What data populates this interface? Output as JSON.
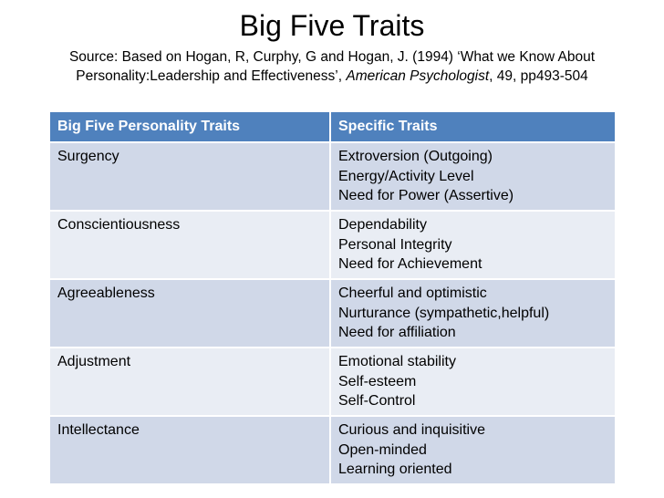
{
  "title": "Big Five Traits",
  "source": {
    "prefix": "Source: Based on Hogan, R, Curphy, G and Hogan, J. (1994) ‘What we Know About Personality:Leadership and Effectiveness’, ",
    "journal": "American Psychologist",
    "suffix": ", 49, pp493-504"
  },
  "table": {
    "headers": [
      "Big Five Personality Traits",
      "Specific Traits"
    ],
    "rows": [
      {
        "trait": "Surgency",
        "specific": [
          "Extroversion (Outgoing)",
          "Energy/Activity Level",
          "Need for Power (Assertive)"
        ]
      },
      {
        "trait": "Conscientiousness",
        "specific": [
          "Dependability",
          "Personal Integrity",
          "Need for Achievement"
        ]
      },
      {
        "trait": "Agreeableness",
        "specific": [
          "Cheerful and optimistic",
          "Nurturance (sympathetic,helpful)",
          "Need for affiliation"
        ]
      },
      {
        "trait": "Adjustment",
        "specific": [
          "Emotional stability",
          "Self-esteem",
          "Self-Control"
        ]
      },
      {
        "trait": "Intellectance",
        "specific": [
          "Curious and inquisitive",
          "Open-minded",
          "Learning oriented"
        ]
      }
    ]
  },
  "colors": {
    "header_bg": "#4f81bd",
    "row_odd_bg": "#d0d8e8",
    "row_even_bg": "#e9edf4"
  }
}
